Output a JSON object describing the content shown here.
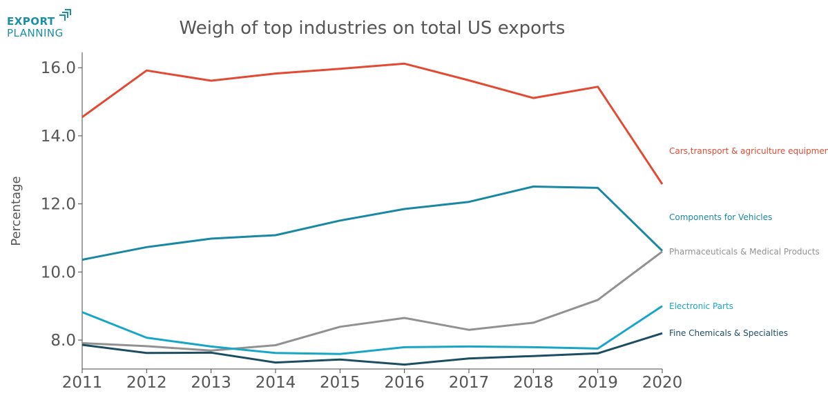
{
  "logo": {
    "line1": "EXPORT",
    "line2": "PLANNING",
    "color": "#1b8fa6"
  },
  "chart_data": {
    "type": "line",
    "title": "Weigh of top industries on total US exports",
    "xlabel": "",
    "ylabel": "Percentage",
    "x": [
      2011,
      2012,
      2013,
      2014,
      2015,
      2016,
      2017,
      2018,
      2019,
      2020
    ],
    "x_ticks": [
      "2011",
      "2012",
      "2013",
      "2014",
      "2015",
      "2016",
      "2017",
      "2018",
      "2019",
      "2020"
    ],
    "y_ticks": [
      "8.0",
      "10.0",
      "12.0",
      "14.0",
      "16.0"
    ],
    "ylim": [
      7.15,
      16.45
    ],
    "grid": false,
    "legend": "right, labels at line ends",
    "series": [
      {
        "name": "Cars,transport & agriculture equipment",
        "color": "#e34a33",
        "values": [
          14.55,
          15.92,
          15.62,
          15.83,
          15.97,
          16.12,
          15.63,
          15.11,
          15.44,
          12.58
        ]
      },
      {
        "name": "Components for Vehicles",
        "color": "#1a87a3",
        "values": [
          10.36,
          10.73,
          10.98,
          11.08,
          11.51,
          11.85,
          12.06,
          12.51,
          12.47,
          10.62
        ]
      },
      {
        "name": "Pharmaceuticals & Medical Products",
        "color": "#919191",
        "values": [
          7.91,
          7.82,
          7.69,
          7.85,
          8.39,
          8.65,
          8.3,
          8.51,
          9.18,
          10.6
        ]
      },
      {
        "name": "Electronic Parts",
        "color": "#19a6c6",
        "values": [
          8.82,
          8.07,
          7.81,
          7.62,
          7.59,
          7.79,
          7.81,
          7.79,
          7.75,
          9.0
        ]
      },
      {
        "name": "Fine Chemicals & Specialties",
        "color": "#1d4d63",
        "values": [
          7.86,
          7.62,
          7.63,
          7.34,
          7.43,
          7.28,
          7.46,
          7.53,
          7.61,
          8.2
        ]
      }
    ]
  }
}
